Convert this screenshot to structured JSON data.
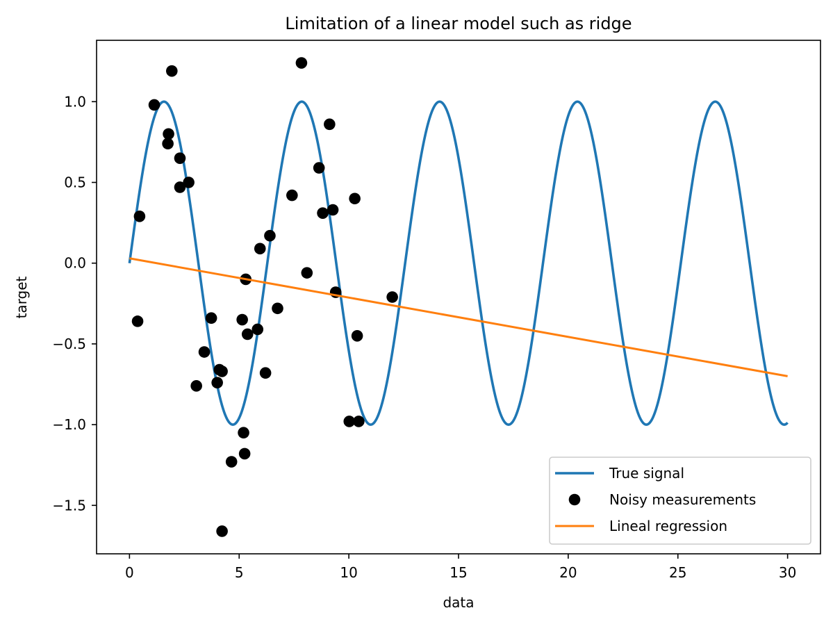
{
  "chart_data": {
    "type": "line+scatter",
    "title": "Limitation of a linear model such as ridge",
    "xlabel": "data",
    "ylabel": "target",
    "xlim": [
      -1.5,
      31.5
    ],
    "ylim": [
      -1.8,
      1.38
    ],
    "xticks": [
      0,
      5,
      10,
      15,
      20,
      25,
      30
    ],
    "xtick_labels": [
      "0",
      "5",
      "10",
      "15",
      "20",
      "25",
      "30"
    ],
    "yticks": [
      1.0,
      0.5,
      0.0,
      -0.5,
      -1.0,
      -1.5
    ],
    "ytick_labels": [
      "1.0",
      "0.5",
      "0.0",
      "−0.5",
      "−1.0",
      "−1.5"
    ],
    "grid": false,
    "legend_position": "lower-right",
    "series": [
      {
        "name": "True signal",
        "kind": "line",
        "color": "#1f77b4",
        "function": "sin",
        "amplitude": 1.0,
        "frequency": 1.0,
        "x_start": 0,
        "x_end": 30
      },
      {
        "name": "Noisy measurements",
        "kind": "scatter",
        "color": "#000000",
        "points": [
          [
            0.37,
            -0.36
          ],
          [
            0.46,
            0.29
          ],
          [
            1.13,
            0.98
          ],
          [
            1.75,
            0.74
          ],
          [
            1.78,
            0.8
          ],
          [
            1.93,
            1.19
          ],
          [
            2.3,
            0.65
          ],
          [
            2.3,
            0.47
          ],
          [
            2.7,
            0.5
          ],
          [
            3.05,
            -0.76
          ],
          [
            3.41,
            -0.55
          ],
          [
            3.73,
            -0.34
          ],
          [
            4.0,
            -0.74
          ],
          [
            4.1,
            -0.66
          ],
          [
            4.22,
            -0.67
          ],
          [
            4.22,
            -1.66
          ],
          [
            4.65,
            -1.23
          ],
          [
            5.14,
            -0.35
          ],
          [
            5.2,
            -1.05
          ],
          [
            5.25,
            -1.18
          ],
          [
            5.3,
            -0.1
          ],
          [
            5.38,
            -0.44
          ],
          [
            5.84,
            -0.41
          ],
          [
            5.95,
            0.09
          ],
          [
            6.2,
            -0.68
          ],
          [
            6.4,
            0.17
          ],
          [
            6.75,
            -0.28
          ],
          [
            7.41,
            0.42
          ],
          [
            7.84,
            1.24
          ],
          [
            8.09,
            -0.06
          ],
          [
            8.64,
            0.59
          ],
          [
            8.81,
            0.31
          ],
          [
            9.12,
            0.86
          ],
          [
            9.27,
            0.33
          ],
          [
            9.4,
            -0.18
          ],
          [
            10.02,
            -0.98
          ],
          [
            10.27,
            0.4
          ],
          [
            10.38,
            -0.45
          ],
          [
            10.45,
            -0.98
          ],
          [
            11.98,
            -0.21
          ]
        ]
      },
      {
        "name": "Lineal regression",
        "kind": "line",
        "color": "#ff7f0e",
        "points": [
          [
            0,
            0.03
          ],
          [
            30,
            -0.7
          ]
        ]
      }
    ]
  }
}
